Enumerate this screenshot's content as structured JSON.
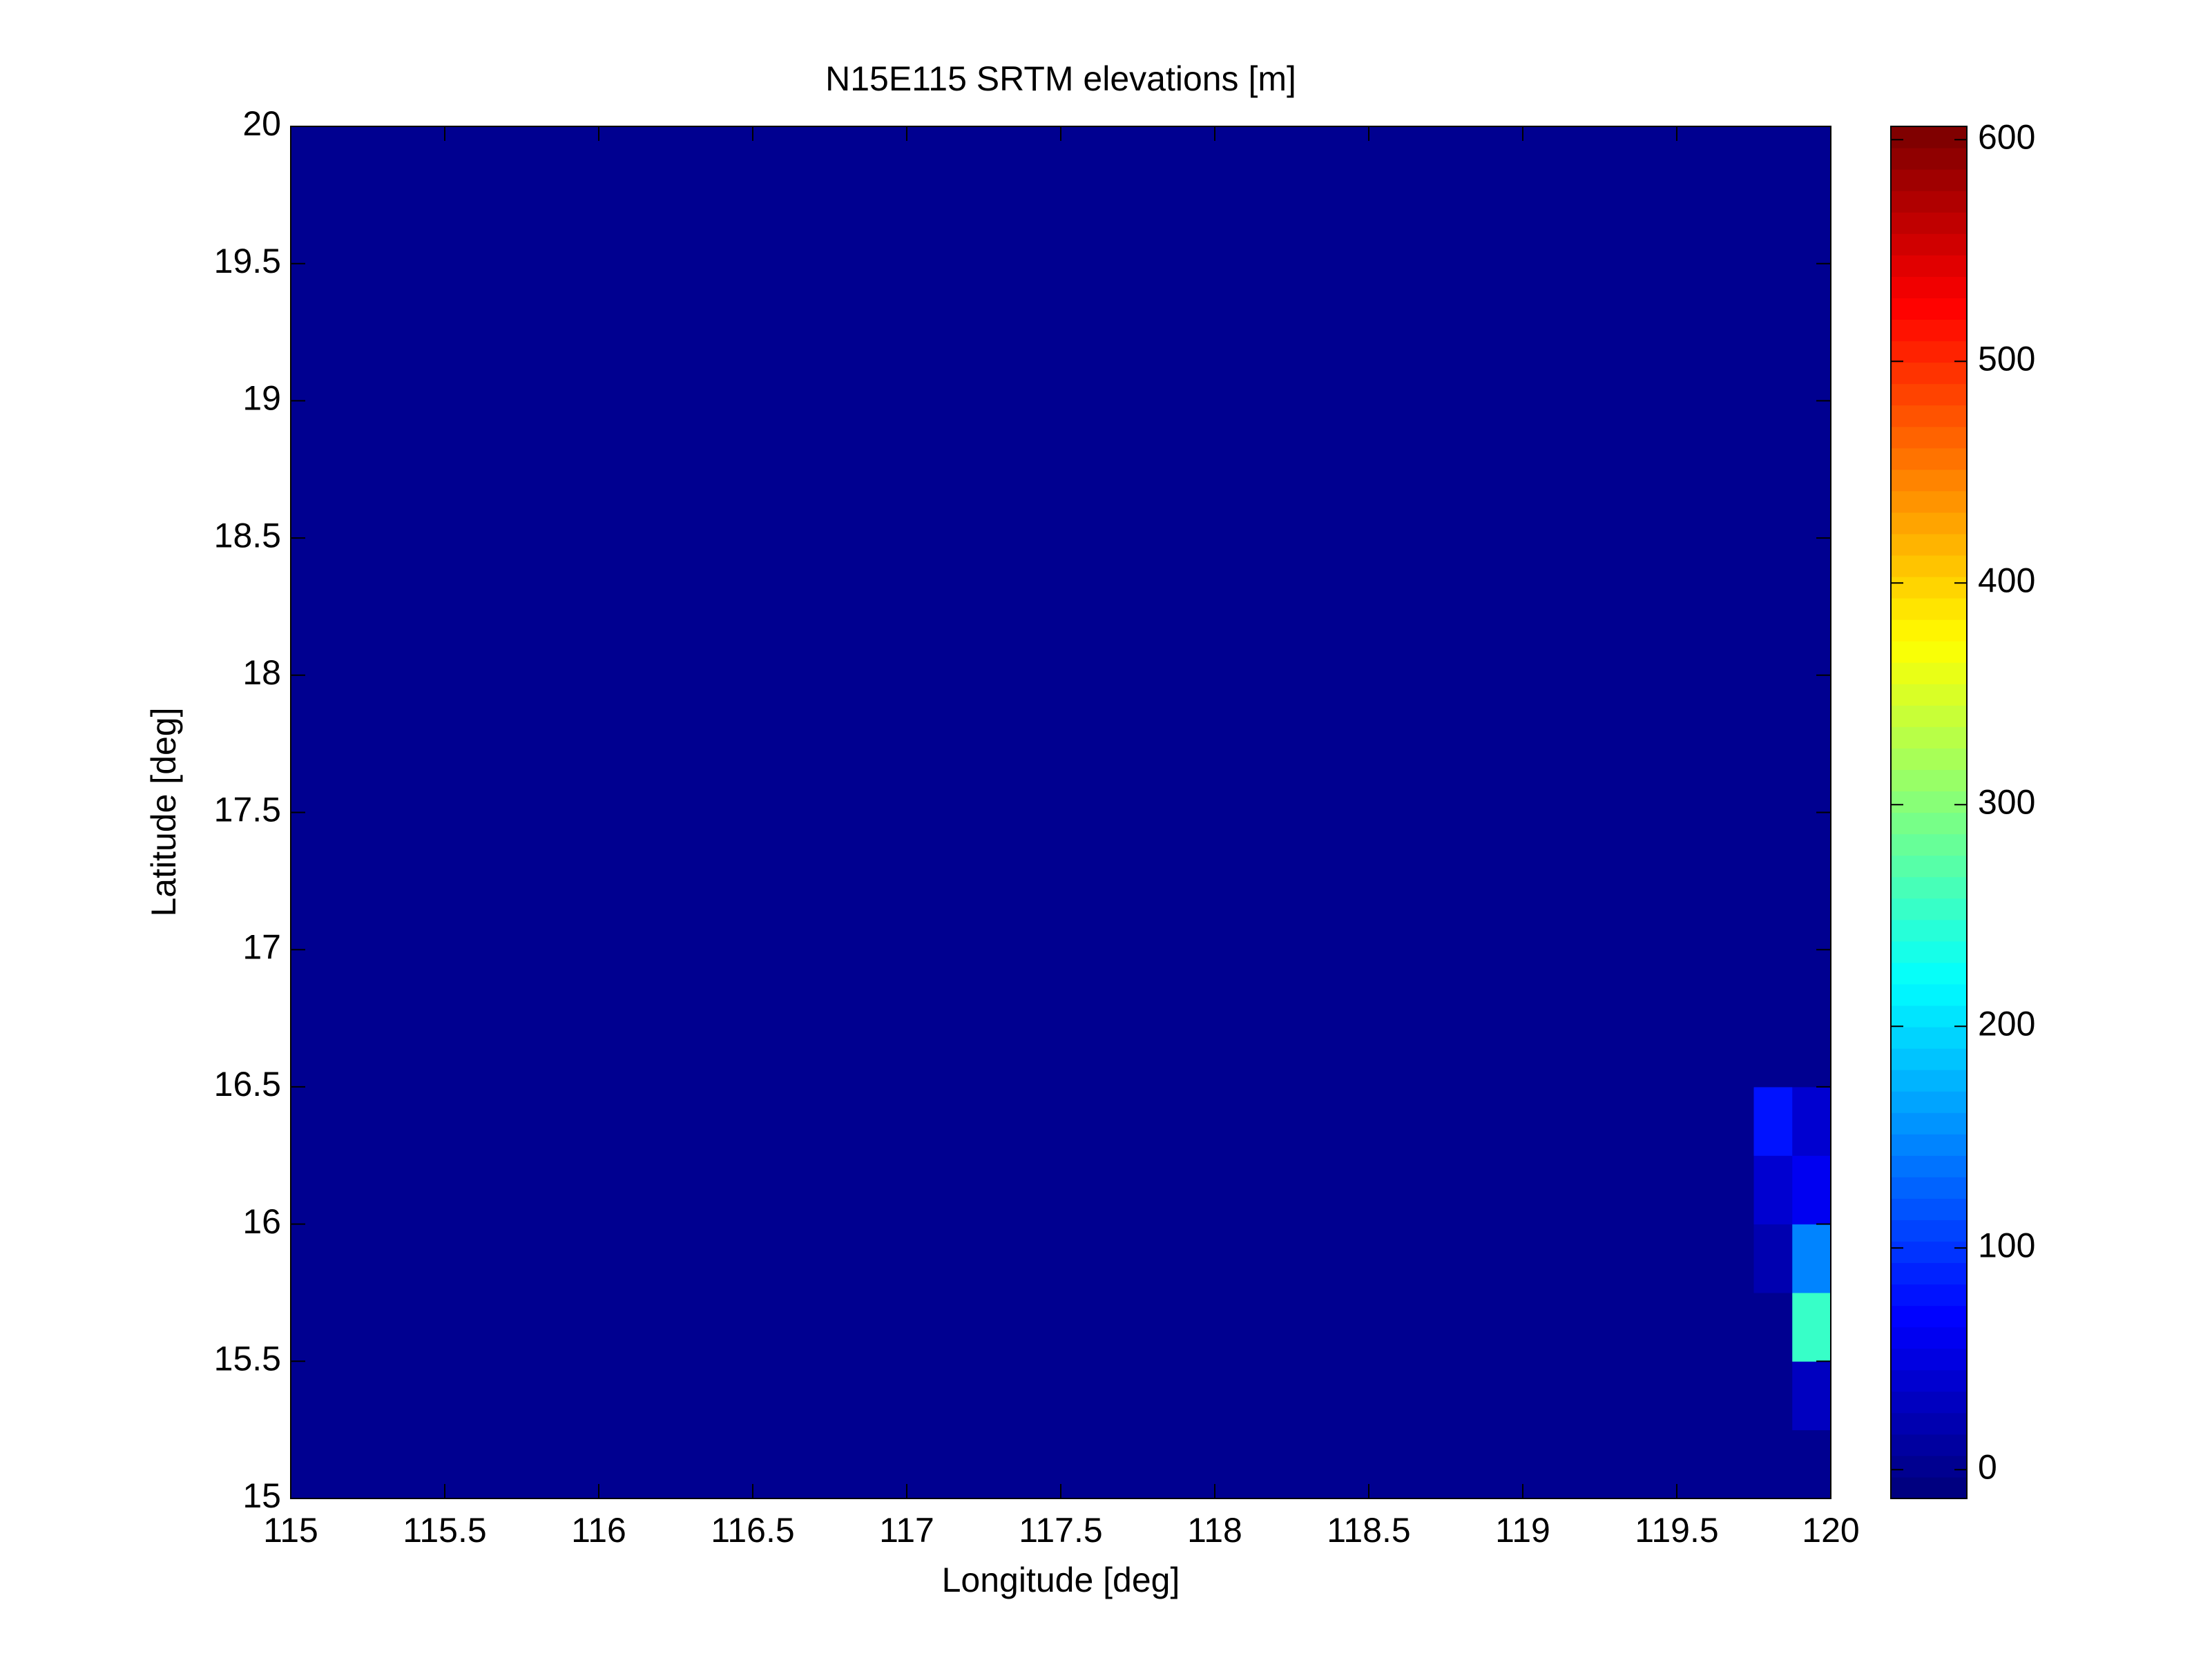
{
  "chart_data": {
    "type": "heatmap",
    "title": "N15E115 SRTM elevations [m]",
    "xlabel": "Longitude [deg]",
    "ylabel": "Latitude [deg]",
    "x_edges": [
      115,
      119.75,
      119.875,
      120
    ],
    "y_edges": [
      15,
      15.25,
      15.5,
      15.75,
      16,
      16.25,
      16.5,
      20
    ],
    "z": [
      [
        0,
        0,
        0
      ],
      [
        0,
        0,
        30
      ],
      [
        0,
        0,
        250
      ],
      [
        0,
        20,
        150
      ],
      [
        0,
        40,
        60
      ],
      [
        0,
        80,
        40
      ],
      [
        0,
        0,
        0
      ]
    ],
    "colormap": "jet",
    "xlim": [
      115,
      120
    ],
    "ylim": [
      15,
      20
    ],
    "xticks": [
      115,
      115.5,
      116,
      116.5,
      117,
      117.5,
      118,
      118.5,
      119,
      119.5,
      120
    ],
    "yticks": [
      15,
      15.5,
      16,
      16.5,
      17,
      17.5,
      18,
      18.5,
      19,
      19.5,
      20
    ],
    "clim": [
      -13,
      606
    ],
    "cticks": [
      0,
      100,
      200,
      300,
      400,
      500,
      600
    ]
  }
}
